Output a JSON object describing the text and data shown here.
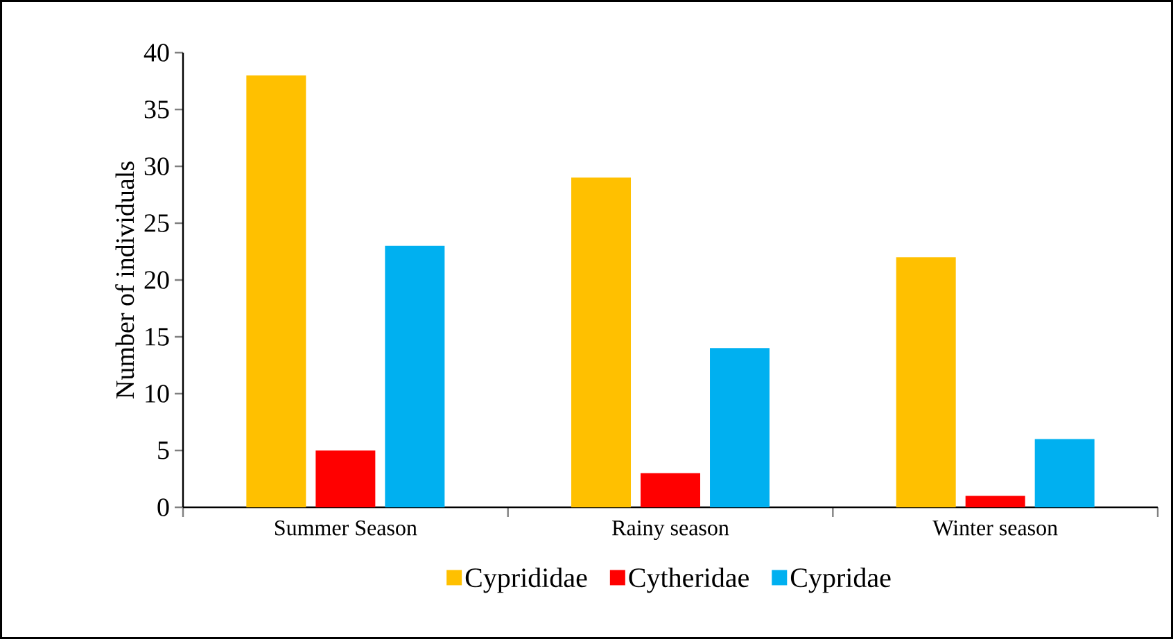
{
  "chart_data": {
    "type": "bar",
    "ylabel": "Number of individuals",
    "categories": [
      "Summer Season",
      "Rainy season",
      "Winter season"
    ],
    "series": [
      {
        "name": "Cyprididae",
        "color": "#ffc000",
        "values": [
          38,
          29,
          22
        ]
      },
      {
        "name": "Cytheridae",
        "color": "#ff0000",
        "values": [
          5,
          3,
          1
        ]
      },
      {
        "name": "Cypridae",
        "color": "#00b0f0",
        "values": [
          23,
          14,
          6
        ]
      }
    ],
    "ylim": [
      0,
      40
    ],
    "yticks": [
      0,
      5,
      10,
      15,
      20,
      25,
      30,
      35,
      40
    ],
    "grid": false,
    "legend": "bottom"
  }
}
